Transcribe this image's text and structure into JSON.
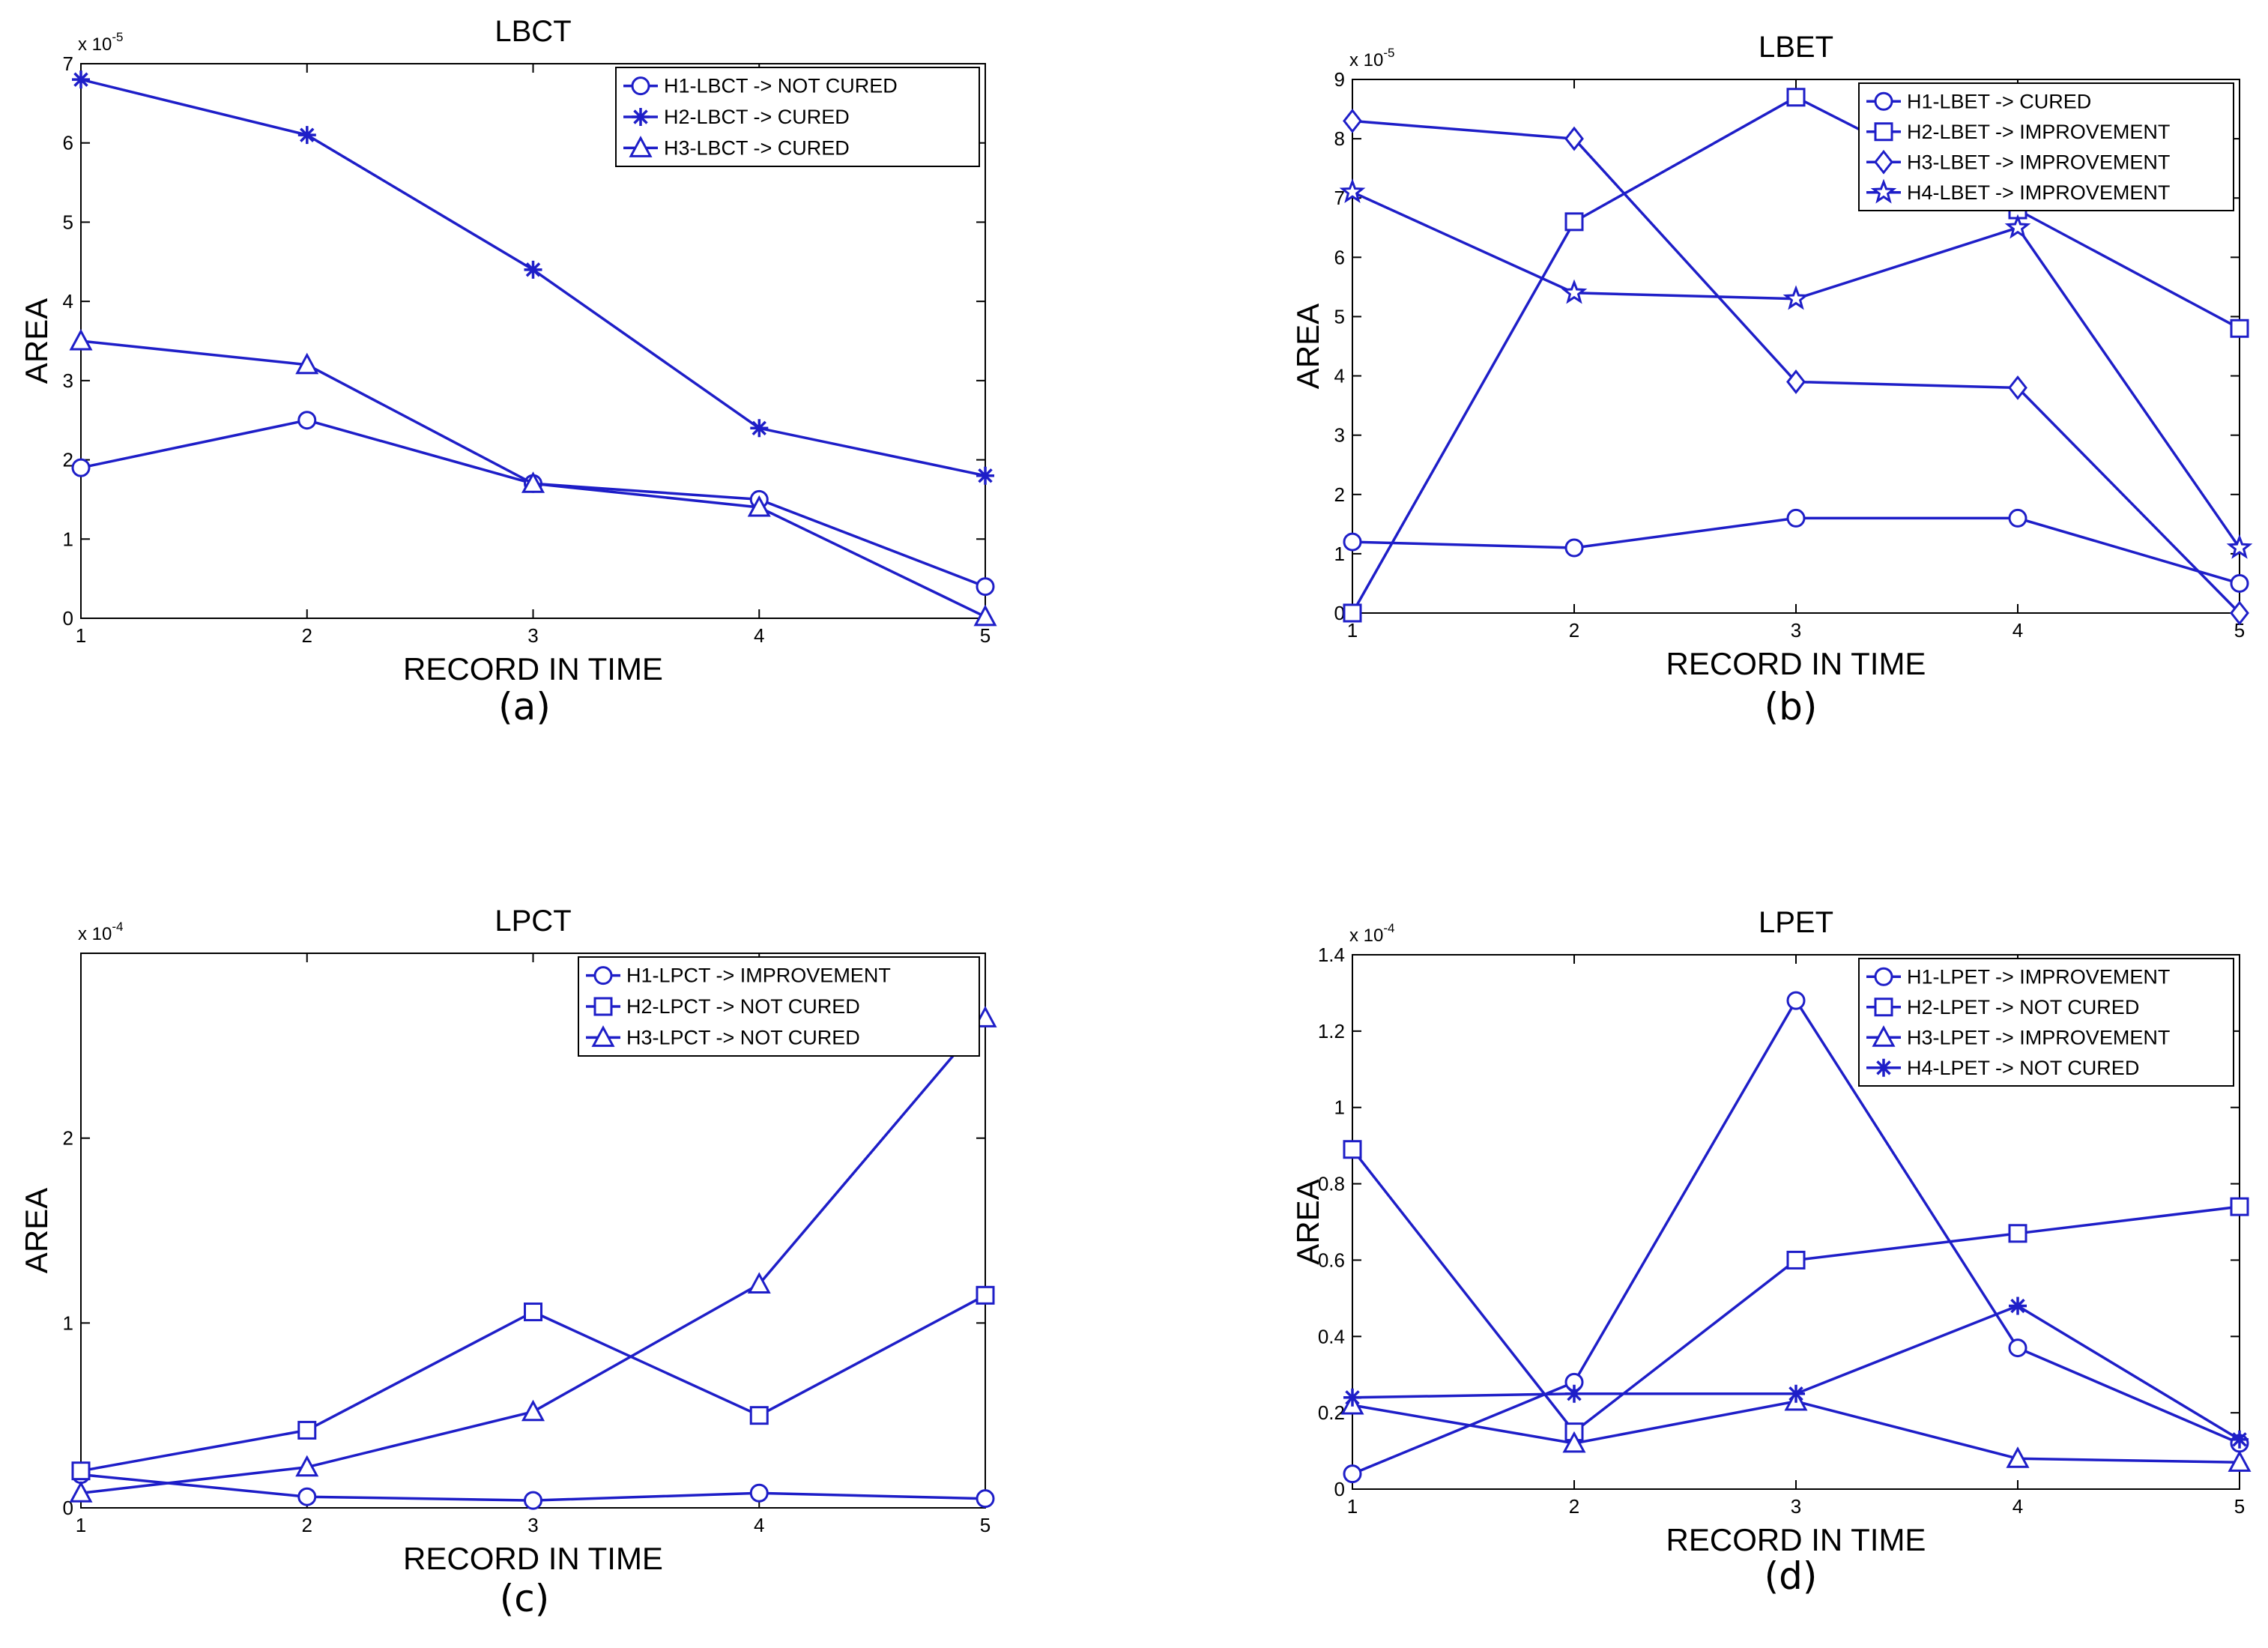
{
  "figure": {
    "captions": [
      "(a)",
      "(b)",
      "(c)",
      "(d)"
    ]
  },
  "chart_data": [
    {
      "type": "line",
      "title": "LBCT",
      "xlabel": "RECORD IN TIME",
      "ylabel": "AREA",
      "exponent_label": "x 10",
      "exponent": "-5",
      "x": [
        1,
        2,
        3,
        4,
        5
      ],
      "xlim": [
        1,
        5
      ],
      "ylim": [
        0,
        7
      ],
      "x_ticks": [
        "1",
        "2",
        "3",
        "4",
        "5"
      ],
      "y_ticks": [
        {
          "v": 0,
          "l": "0"
        },
        {
          "v": 1,
          "l": "1"
        },
        {
          "v": 2,
          "l": "2"
        },
        {
          "v": 3,
          "l": "3"
        },
        {
          "v": 4,
          "l": "4"
        },
        {
          "v": 5,
          "l": "5"
        },
        {
          "v": 6,
          "l": "6"
        },
        {
          "v": 7,
          "l": "7"
        }
      ],
      "legend_position": "top-right",
      "series": [
        {
          "name": "H1-LBCT -> NOT CURED",
          "marker": "circle",
          "values": [
            1.9,
            2.5,
            1.7,
            1.5,
            0.4
          ]
        },
        {
          "name": "H2-LBCT -> CURED",
          "marker": "asterisk",
          "values": [
            6.8,
            6.1,
            4.4,
            2.4,
            1.8
          ]
        },
        {
          "name": "H3-LBCT -> CURED",
          "marker": "triangle",
          "values": [
            3.5,
            3.2,
            1.7,
            1.4,
            0.02
          ]
        }
      ]
    },
    {
      "type": "line",
      "title": "LBET",
      "xlabel": "RECORD IN TIME",
      "ylabel": "AREA",
      "exponent_label": "x 10",
      "exponent": "-5",
      "x": [
        1,
        2,
        3,
        4,
        5
      ],
      "xlim": [
        1,
        5
      ],
      "ylim": [
        0,
        9
      ],
      "x_ticks": [
        "1",
        "2",
        "3",
        "4",
        "5"
      ],
      "y_ticks": [
        {
          "v": 0,
          "l": "0"
        },
        {
          "v": 1,
          "l": "1"
        },
        {
          "v": 2,
          "l": "2"
        },
        {
          "v": 3,
          "l": "3"
        },
        {
          "v": 4,
          "l": "4"
        },
        {
          "v": 5,
          "l": "5"
        },
        {
          "v": 6,
          "l": "6"
        },
        {
          "v": 7,
          "l": "7"
        },
        {
          "v": 8,
          "l": "8"
        },
        {
          "v": 9,
          "l": "9"
        }
      ],
      "legend_position": "top-right",
      "series": [
        {
          "name": "H1-LBET -> CURED",
          "marker": "circle",
          "values": [
            1.2,
            1.1,
            1.6,
            1.6,
            0.5
          ]
        },
        {
          "name": "H2-LBET -> IMPROVEMENT",
          "marker": "square",
          "values": [
            0.0,
            6.6,
            8.7,
            6.8,
            4.8
          ]
        },
        {
          "name": "H3-LBET -> IMPROVEMENT",
          "marker": "diamond",
          "values": [
            8.3,
            8.0,
            3.9,
            3.8,
            0.0
          ]
        },
        {
          "name": "H4-LBET -> IMPROVEMENT",
          "marker": "star",
          "values": [
            7.1,
            5.4,
            5.3,
            6.5,
            1.1
          ]
        }
      ]
    },
    {
      "type": "line",
      "title": "LPCT",
      "xlabel": "RECORD IN TIME",
      "ylabel": "AREA",
      "exponent_label": "x 10",
      "exponent": "-4",
      "x": [
        1,
        2,
        3,
        4,
        5
      ],
      "xlim": [
        1,
        5
      ],
      "ylim": [
        0,
        3
      ],
      "x_ticks": [
        "1",
        "2",
        "3",
        "4",
        "5"
      ],
      "y_ticks": [
        {
          "v": 0,
          "l": "0"
        },
        {
          "v": 1,
          "l": "1"
        },
        {
          "v": 2,
          "l": "2"
        }
      ],
      "legend_position": "top-right",
      "series": [
        {
          "name": "H1-LPCT -> IMPROVEMENT",
          "marker": "circle",
          "values": [
            0.18,
            0.06,
            0.04,
            0.08,
            0.05
          ]
        },
        {
          "name": "H2-LPCT -> NOT CURED",
          "marker": "square",
          "values": [
            0.2,
            0.42,
            1.06,
            0.5,
            1.15
          ]
        },
        {
          "name": "H3-LPCT -> NOT CURED",
          "marker": "triangle",
          "values": [
            0.08,
            0.22,
            0.52,
            1.21,
            2.65
          ]
        }
      ]
    },
    {
      "type": "line",
      "title": "LPET",
      "xlabel": "RECORD IN TIME",
      "ylabel": "AREA",
      "exponent_label": "x 10",
      "exponent": "-4",
      "x": [
        1,
        2,
        3,
        4,
        5
      ],
      "xlim": [
        1,
        5
      ],
      "ylim": [
        0,
        1.4
      ],
      "x_ticks": [
        "1",
        "2",
        "3",
        "4",
        "5"
      ],
      "y_ticks": [
        {
          "v": 0,
          "l": "0"
        },
        {
          "v": 0.2,
          "l": "0.2"
        },
        {
          "v": 0.4,
          "l": "0.4"
        },
        {
          "v": 0.6,
          "l": "0.6"
        },
        {
          "v": 0.8,
          "l": "0.8"
        },
        {
          "v": 1,
          "l": "1"
        },
        {
          "v": 1.2,
          "l": "1.2"
        },
        {
          "v": 1.4,
          "l": "1.4"
        }
      ],
      "legend_position": "top-right",
      "series": [
        {
          "name": "H1-LPET -> IMPROVEMENT",
          "marker": "circle",
          "values": [
            0.04,
            0.28,
            1.28,
            0.37,
            0.12
          ]
        },
        {
          "name": "H2-LPET -> NOT CURED",
          "marker": "square",
          "values": [
            0.89,
            0.15,
            0.6,
            0.67,
            0.74
          ]
        },
        {
          "name": "H3-LPET -> IMPROVEMENT",
          "marker": "triangle",
          "values": [
            0.22,
            0.12,
            0.23,
            0.08,
            0.07
          ]
        },
        {
          "name": "H4-LPET -> NOT CURED",
          "marker": "asterisk",
          "values": [
            0.24,
            0.25,
            0.25,
            0.48,
            0.13
          ]
        }
      ]
    }
  ],
  "colors": {
    "series": "#1e1ec8",
    "axis": "#000000",
    "text": "#000000"
  }
}
